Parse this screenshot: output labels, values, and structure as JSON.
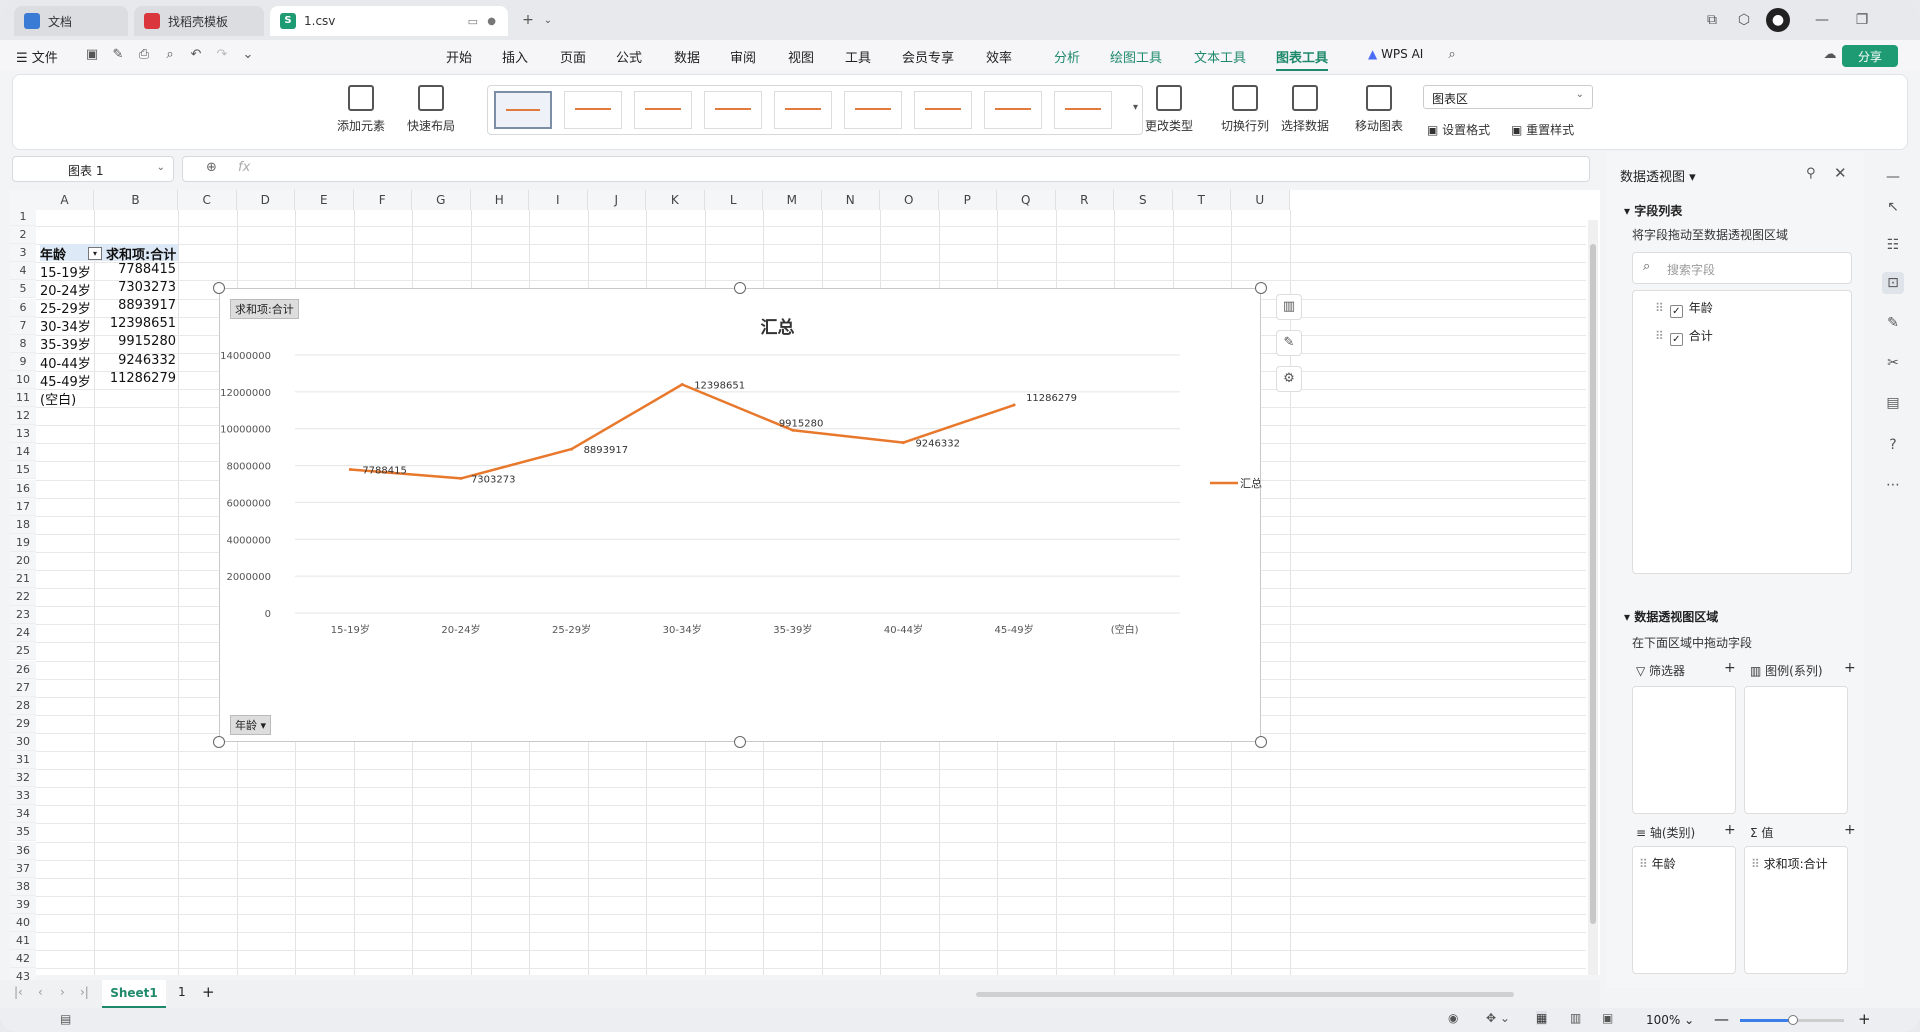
{
  "tabs": [
    {
      "label": "文档"
    },
    {
      "label": "找稻壳模板"
    },
    {
      "label": "1.csv"
    }
  ],
  "menu": {
    "file": "文件",
    "items": [
      "开始",
      "插入",
      "页面",
      "公式",
      "数据",
      "审阅",
      "视图",
      "工具",
      "会员专享",
      "效率",
      "分析",
      "绘图工具",
      "文本工具",
      "图表工具"
    ],
    "wps_ai": "WPS AI",
    "share": "分享"
  },
  "ribbon": {
    "add_element": "添加元素",
    "quick_layout": "快速布局",
    "change_type": "更改类型",
    "switch_row_col": "切换行列",
    "select_data": "选择数据",
    "move_chart": "移动图表",
    "chart_area": "图表区",
    "set_format": "设置格式",
    "reset_style": "重置样式"
  },
  "formula": {
    "name_box": "图表 1",
    "fx": "fx"
  },
  "columns": [
    "A",
    "B",
    "C",
    "D",
    "E",
    "F",
    "G",
    "H",
    "I",
    "J",
    "K",
    "L",
    "M",
    "N",
    "O",
    "P",
    "Q",
    "R",
    "S",
    "T",
    "U"
  ],
  "table": {
    "header": {
      "age": "年龄",
      "sum": "求和项:合计"
    },
    "rows": [
      {
        "age": "15-19岁",
        "value": "7788415"
      },
      {
        "age": "20-24岁",
        "value": "7303273"
      },
      {
        "age": "25-29岁",
        "value": "8893917"
      },
      {
        "age": "30-34岁",
        "value": "12398651"
      },
      {
        "age": "35-39岁",
        "value": "9915280"
      },
      {
        "age": "40-44岁",
        "value": "9246332"
      },
      {
        "age": "45-49岁",
        "value": "11286279"
      },
      {
        "age": "(空白)",
        "value": ""
      }
    ]
  },
  "chart_data": {
    "type": "line",
    "title": "汇总",
    "value_field_button": "求和项:合计",
    "axis_field_button": "年龄",
    "categories": [
      "15-19岁",
      "20-24岁",
      "25-29岁",
      "30-34岁",
      "35-39岁",
      "40-44岁",
      "45-49岁",
      "(空白)"
    ],
    "series": [
      {
        "name": "汇总",
        "values": [
          7788415,
          7303273,
          8893917,
          12398651,
          9915280,
          9246332,
          11286279,
          null
        ],
        "color": "#e8782c"
      }
    ],
    "ylim": [
      0,
      14000000
    ],
    "yticks": [
      "14000000",
      "12000000",
      "10000000",
      "8000000",
      "6000000",
      "4000000",
      "2000000",
      "0"
    ],
    "data_labels": [
      "7788415",
      "7303273",
      "8893917",
      "12398651",
      "9915280",
      "9246332",
      "11286279"
    ],
    "grid": true,
    "legend": "right"
  },
  "pivot_pane": {
    "title": "数据透视图",
    "field_list": "字段列表",
    "drag_hint": "将字段拖动至数据透视图区域",
    "search_placeholder": "搜索字段",
    "fields": [
      "年龄",
      "合计"
    ],
    "areas_title": "数据透视图区域",
    "areas_hint": "在下面区域中拖动字段",
    "filter": "筛选器",
    "legend": "图例(系列)",
    "axis": "轴(类别)",
    "values": "值",
    "axis_item": "年龄",
    "values_item": "求和项:合计"
  },
  "sheets": [
    "Sheet1",
    "1"
  ],
  "status": {
    "zoom": "100%"
  }
}
